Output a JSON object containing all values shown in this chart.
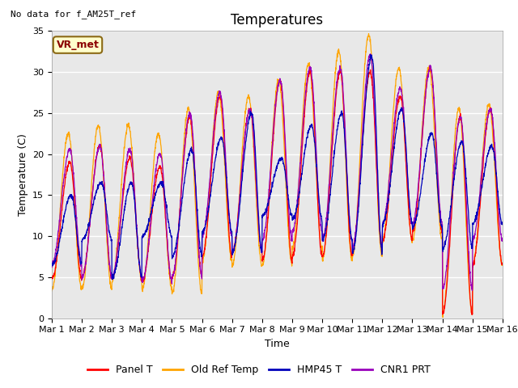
{
  "title": "Temperatures",
  "xlabel": "Time",
  "ylabel": "Temperature (C)",
  "ylim": [
    0,
    35
  ],
  "annotation_text": "No data for f_AM25T_ref",
  "box_label": "VR_met",
  "series_colors": [
    "#ff0000",
    "#ffa500",
    "#0000bb",
    "#9900bb"
  ],
  "series_labels": [
    "Panel T",
    "Old Ref Temp",
    "HMP45 T",
    "CNR1 PRT"
  ],
  "x_tick_labels": [
    "Mar 1",
    "Mar 2",
    "Mar 3",
    "Mar 4",
    "Mar 5",
    "Mar 6",
    "Mar 7",
    "Mar 8",
    "Mar 9",
    "Mar 10",
    "Mar 11",
    "Mar 12",
    "Mar 13",
    "Mar 14",
    "Mar 15",
    "Mar 16"
  ],
  "n_days": 15,
  "background_color": "#ffffff",
  "plot_bg_color": "#e8e8e8",
  "linewidth": 0.9,
  "legend_fontsize": 9,
  "title_fontsize": 12,
  "axis_fontsize": 8,
  "daily_mins_red": [
    4.8,
    5.0,
    4.8,
    4.5,
    5.0,
    7.5,
    8.0,
    7.0,
    7.5,
    7.5,
    8.5,
    9.5,
    10.5,
    0.5,
    6.5
  ],
  "daily_maxs_red": [
    19.0,
    21.0,
    19.5,
    18.5,
    24.5,
    27.0,
    25.5,
    29.0,
    30.0,
    30.0,
    30.0,
    27.0,
    30.5,
    24.5,
    25.5
  ],
  "daily_mins_orange": [
    3.5,
    3.5,
    4.5,
    3.5,
    3.0,
    7.0,
    6.5,
    6.5,
    8.5,
    7.0,
    7.5,
    9.5,
    9.5,
    0.5,
    6.5
  ],
  "daily_maxs_orange": [
    22.5,
    23.5,
    23.5,
    22.5,
    25.5,
    27.5,
    27.0,
    29.0,
    31.0,
    32.5,
    34.5,
    30.5,
    30.5,
    25.5,
    26.0
  ],
  "daily_mins_blue": [
    6.5,
    9.5,
    5.0,
    10.0,
    7.5,
    10.5,
    8.0,
    12.5,
    12.0,
    9.5,
    8.0,
    11.5,
    11.0,
    8.5,
    11.5
  ],
  "daily_maxs_blue": [
    15.0,
    16.5,
    16.5,
    16.5,
    20.5,
    22.0,
    25.0,
    19.5,
    23.5,
    25.0,
    32.0,
    25.5,
    22.5,
    21.5,
    21.0
  ],
  "daily_mins_purple": [
    6.5,
    5.0,
    5.0,
    4.5,
    5.0,
    10.0,
    8.0,
    9.5,
    10.5,
    9.5,
    8.5,
    11.5,
    11.5,
    3.5,
    9.5
  ],
  "daily_maxs_purple": [
    20.5,
    21.0,
    20.5,
    20.0,
    25.0,
    27.5,
    25.5,
    29.0,
    30.5,
    30.5,
    32.0,
    28.0,
    30.5,
    24.5,
    25.5
  ]
}
